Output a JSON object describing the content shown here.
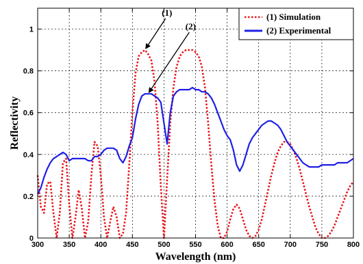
{
  "chart_data": {
    "type": "line",
    "title": "",
    "xlabel": "Wavelength (nm)",
    "ylabel": "Reflectivity",
    "xlim": [
      300,
      800
    ],
    "ylim": [
      0,
      1.1
    ],
    "xticks": [
      300,
      350,
      400,
      450,
      500,
      550,
      600,
      650,
      700,
      750,
      800
    ],
    "yticks": [
      0,
      0.2,
      0.4,
      0.6,
      0.8,
      1
    ],
    "ytick_labels": [
      "0",
      "0.2",
      "0.4",
      "0.6",
      "0.8",
      "1"
    ],
    "grid": true,
    "legend_position": "top-right",
    "colors": {
      "simulation": "#e8141b",
      "experimental": "#1f1fe6"
    },
    "series": [
      {
        "name": "(1) Simulation",
        "style": "dotted",
        "x": [
          300,
          305,
          310,
          315,
          320,
          325,
          330,
          335,
          340,
          345,
          350,
          355,
          360,
          365,
          370,
          375,
          380,
          385,
          390,
          395,
          400,
          405,
          410,
          415,
          420,
          425,
          430,
          435,
          440,
          445,
          450,
          455,
          460,
          465,
          470,
          475,
          480,
          485,
          490,
          495,
          500,
          505,
          510,
          515,
          520,
          525,
          530,
          535,
          540,
          545,
          550,
          555,
          560,
          565,
          570,
          575,
          580,
          585,
          590,
          595,
          600,
          605,
          610,
          615,
          620,
          625,
          630,
          635,
          640,
          645,
          650,
          655,
          660,
          665,
          670,
          675,
          680,
          685,
          690,
          695,
          700,
          705,
          710,
          715,
          720,
          725,
          730,
          735,
          740,
          745,
          750,
          755,
          760,
          765,
          770,
          775,
          780,
          785,
          790,
          795,
          800
        ],
        "values": [
          0.3,
          0.15,
          0.12,
          0.26,
          0.27,
          0.12,
          0.0,
          0.12,
          0.36,
          0.38,
          0.16,
          0.0,
          0.1,
          0.23,
          0.14,
          0.0,
          0.08,
          0.3,
          0.46,
          0.44,
          0.3,
          0.1,
          0.0,
          0.08,
          0.15,
          0.1,
          0.0,
          0.02,
          0.12,
          0.35,
          0.6,
          0.79,
          0.87,
          0.89,
          0.9,
          0.88,
          0.85,
          0.75,
          0.55,
          0.25,
          0.0,
          0.28,
          0.55,
          0.72,
          0.82,
          0.87,
          0.89,
          0.9,
          0.9,
          0.9,
          0.89,
          0.87,
          0.82,
          0.72,
          0.55,
          0.35,
          0.18,
          0.06,
          0.0,
          0.0,
          0.03,
          0.09,
          0.14,
          0.16,
          0.14,
          0.09,
          0.04,
          0.01,
          0.0,
          0.01,
          0.04,
          0.09,
          0.16,
          0.23,
          0.3,
          0.36,
          0.41,
          0.44,
          0.46,
          0.46,
          0.45,
          0.42,
          0.38,
          0.33,
          0.27,
          0.21,
          0.15,
          0.1,
          0.05,
          0.02,
          0.0,
          0.0,
          0.01,
          0.03,
          0.06,
          0.1,
          0.14,
          0.18,
          0.22,
          0.25,
          0.27
        ]
      },
      {
        "name": "(2) Experimental",
        "style": "solid",
        "x": [
          300,
          305,
          310,
          315,
          320,
          325,
          330,
          335,
          340,
          345,
          350,
          355,
          360,
          365,
          370,
          375,
          380,
          385,
          390,
          395,
          400,
          405,
          410,
          415,
          420,
          425,
          430,
          435,
          440,
          445,
          450,
          455,
          460,
          465,
          470,
          475,
          480,
          485,
          490,
          495,
          500,
          505,
          510,
          515,
          520,
          525,
          530,
          535,
          540,
          545,
          550,
          555,
          560,
          565,
          570,
          575,
          580,
          585,
          590,
          595,
          600,
          605,
          610,
          615,
          620,
          625,
          630,
          635,
          640,
          645,
          650,
          655,
          660,
          665,
          670,
          675,
          680,
          685,
          690,
          695,
          700,
          705,
          710,
          715,
          720,
          725,
          730,
          735,
          740,
          745,
          750,
          755,
          760,
          765,
          770,
          775,
          780,
          785,
          790,
          795,
          800
        ],
        "values": [
          0.21,
          0.24,
          0.29,
          0.33,
          0.36,
          0.38,
          0.39,
          0.4,
          0.41,
          0.4,
          0.37,
          0.38,
          0.38,
          0.38,
          0.38,
          0.38,
          0.37,
          0.37,
          0.39,
          0.39,
          0.4,
          0.42,
          0.43,
          0.43,
          0.43,
          0.42,
          0.38,
          0.36,
          0.39,
          0.44,
          0.48,
          0.57,
          0.64,
          0.68,
          0.69,
          0.69,
          0.69,
          0.68,
          0.67,
          0.65,
          0.55,
          0.45,
          0.6,
          0.68,
          0.7,
          0.71,
          0.71,
          0.71,
          0.71,
          0.72,
          0.71,
          0.71,
          0.7,
          0.7,
          0.69,
          0.67,
          0.64,
          0.6,
          0.56,
          0.52,
          0.49,
          0.47,
          0.42,
          0.35,
          0.32,
          0.35,
          0.4,
          0.45,
          0.48,
          0.5,
          0.52,
          0.54,
          0.55,
          0.56,
          0.56,
          0.55,
          0.54,
          0.52,
          0.49,
          0.46,
          0.44,
          0.42,
          0.4,
          0.38,
          0.36,
          0.35,
          0.34,
          0.34,
          0.34,
          0.34,
          0.35,
          0.35,
          0.35,
          0.35,
          0.35,
          0.36,
          0.36,
          0.36,
          0.36,
          0.37,
          0.38
        ]
      }
    ],
    "annotations": [
      {
        "label": "(1)",
        "x": 470,
        "y": 0.9
      },
      {
        "label": "(2)",
        "x": 475,
        "y": 0.69
      }
    ]
  }
}
